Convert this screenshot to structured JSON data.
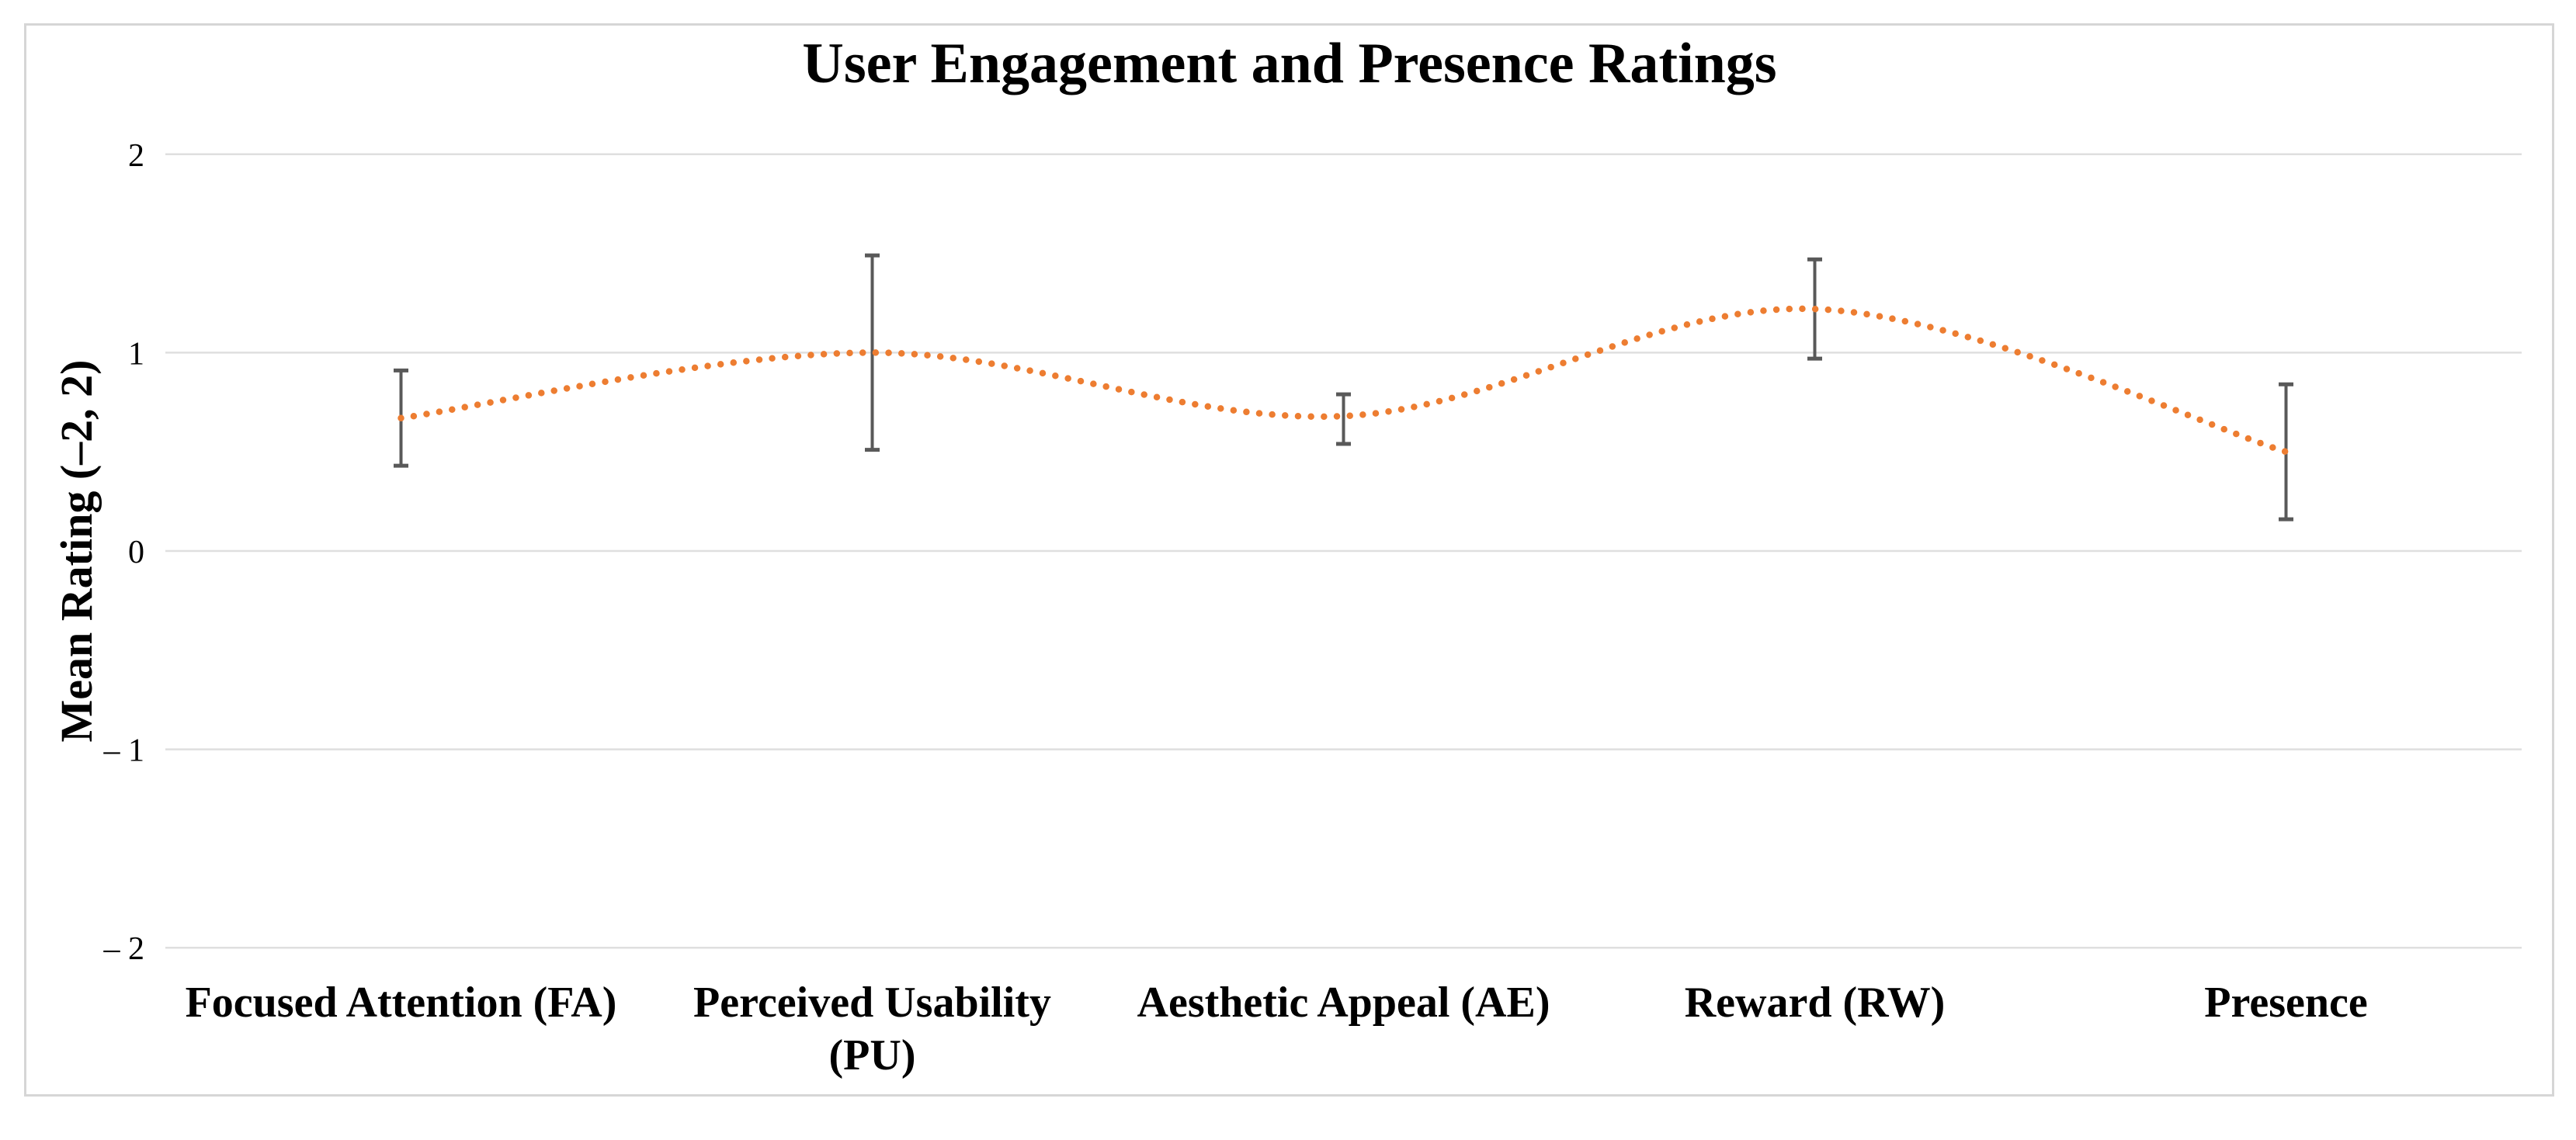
{
  "page": {
    "background": "#ffffff"
  },
  "chart_data": {
    "type": "line",
    "style": "smooth-dotted-line-with-error-bars",
    "title": "User Engagement and Presence Ratings",
    "xlabel": "",
    "ylabel": "Mean Rating (–2, 2)",
    "ylim": [
      -2,
      2
    ],
    "yticks": [
      2,
      1,
      0,
      -1,
      -2
    ],
    "ytick_labels": [
      "2",
      "1",
      "0",
      "– 1",
      "– 2"
    ],
    "grid": true,
    "legend": false,
    "categories": [
      "Focused Attention (FA)",
      "Perceived Usability (PU)",
      "Aesthetic Appeal (AE)",
      "Reward (RW)",
      "Presence"
    ],
    "category_display_lines": [
      [
        "Focused Attention (FA)"
      ],
      [
        "Perceived Usability",
        "(PU)"
      ],
      [
        "Aesthetic Appeal (AE)"
      ],
      [
        "Reward (RW)"
      ],
      [
        "Presence"
      ]
    ],
    "series": [
      {
        "values": [
          0.67,
          1.0,
          0.68,
          1.22,
          0.5
        ],
        "error_low": [
          0.43,
          0.51,
          0.54,
          0.97,
          0.16
        ],
        "error_high": [
          0.91,
          1.49,
          0.79,
          1.47,
          0.84
        ],
        "color": "#ED7D31"
      }
    ],
    "colors": {
      "error_bar": "#595959",
      "gridline": "#DFDFDF",
      "frame_border": "#D6D6D6",
      "text": "#000000"
    }
  }
}
